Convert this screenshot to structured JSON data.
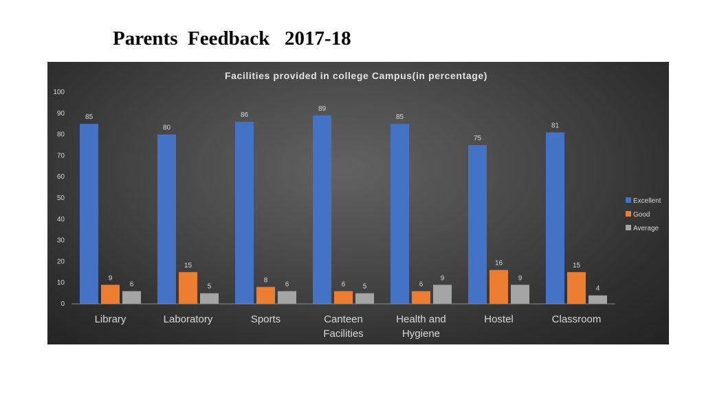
{
  "page": {
    "title": "Parents  Feedback   2017-18"
  },
  "chart_data": {
    "type": "bar",
    "title": "Facilities provided in college Campus(in percentage)",
    "categories": [
      [
        "Library"
      ],
      [
        "Laboratory"
      ],
      [
        "Sports"
      ],
      [
        "Canteen",
        "Facilities"
      ],
      [
        "Health and",
        "Hygiene"
      ],
      [
        "Hostel"
      ],
      [
        "Classroom"
      ]
    ],
    "series": [
      {
        "name": "Excellent",
        "color": "#4472c4",
        "values": [
          85,
          80,
          86,
          89,
          85,
          75,
          81
        ]
      },
      {
        "name": "Good",
        "color": "#ed7d31",
        "values": [
          9,
          15,
          8,
          6,
          6,
          16,
          15
        ]
      },
      {
        "name": "Average",
        "color": "#a5a5a5",
        "values": [
          6,
          5,
          6,
          5,
          9,
          9,
          4
        ]
      }
    ],
    "ylim": [
      0,
      100
    ],
    "yticks": [
      0,
      10,
      20,
      30,
      40,
      50,
      60,
      70,
      80,
      90,
      100
    ],
    "legend": "right",
    "grid": false
  }
}
